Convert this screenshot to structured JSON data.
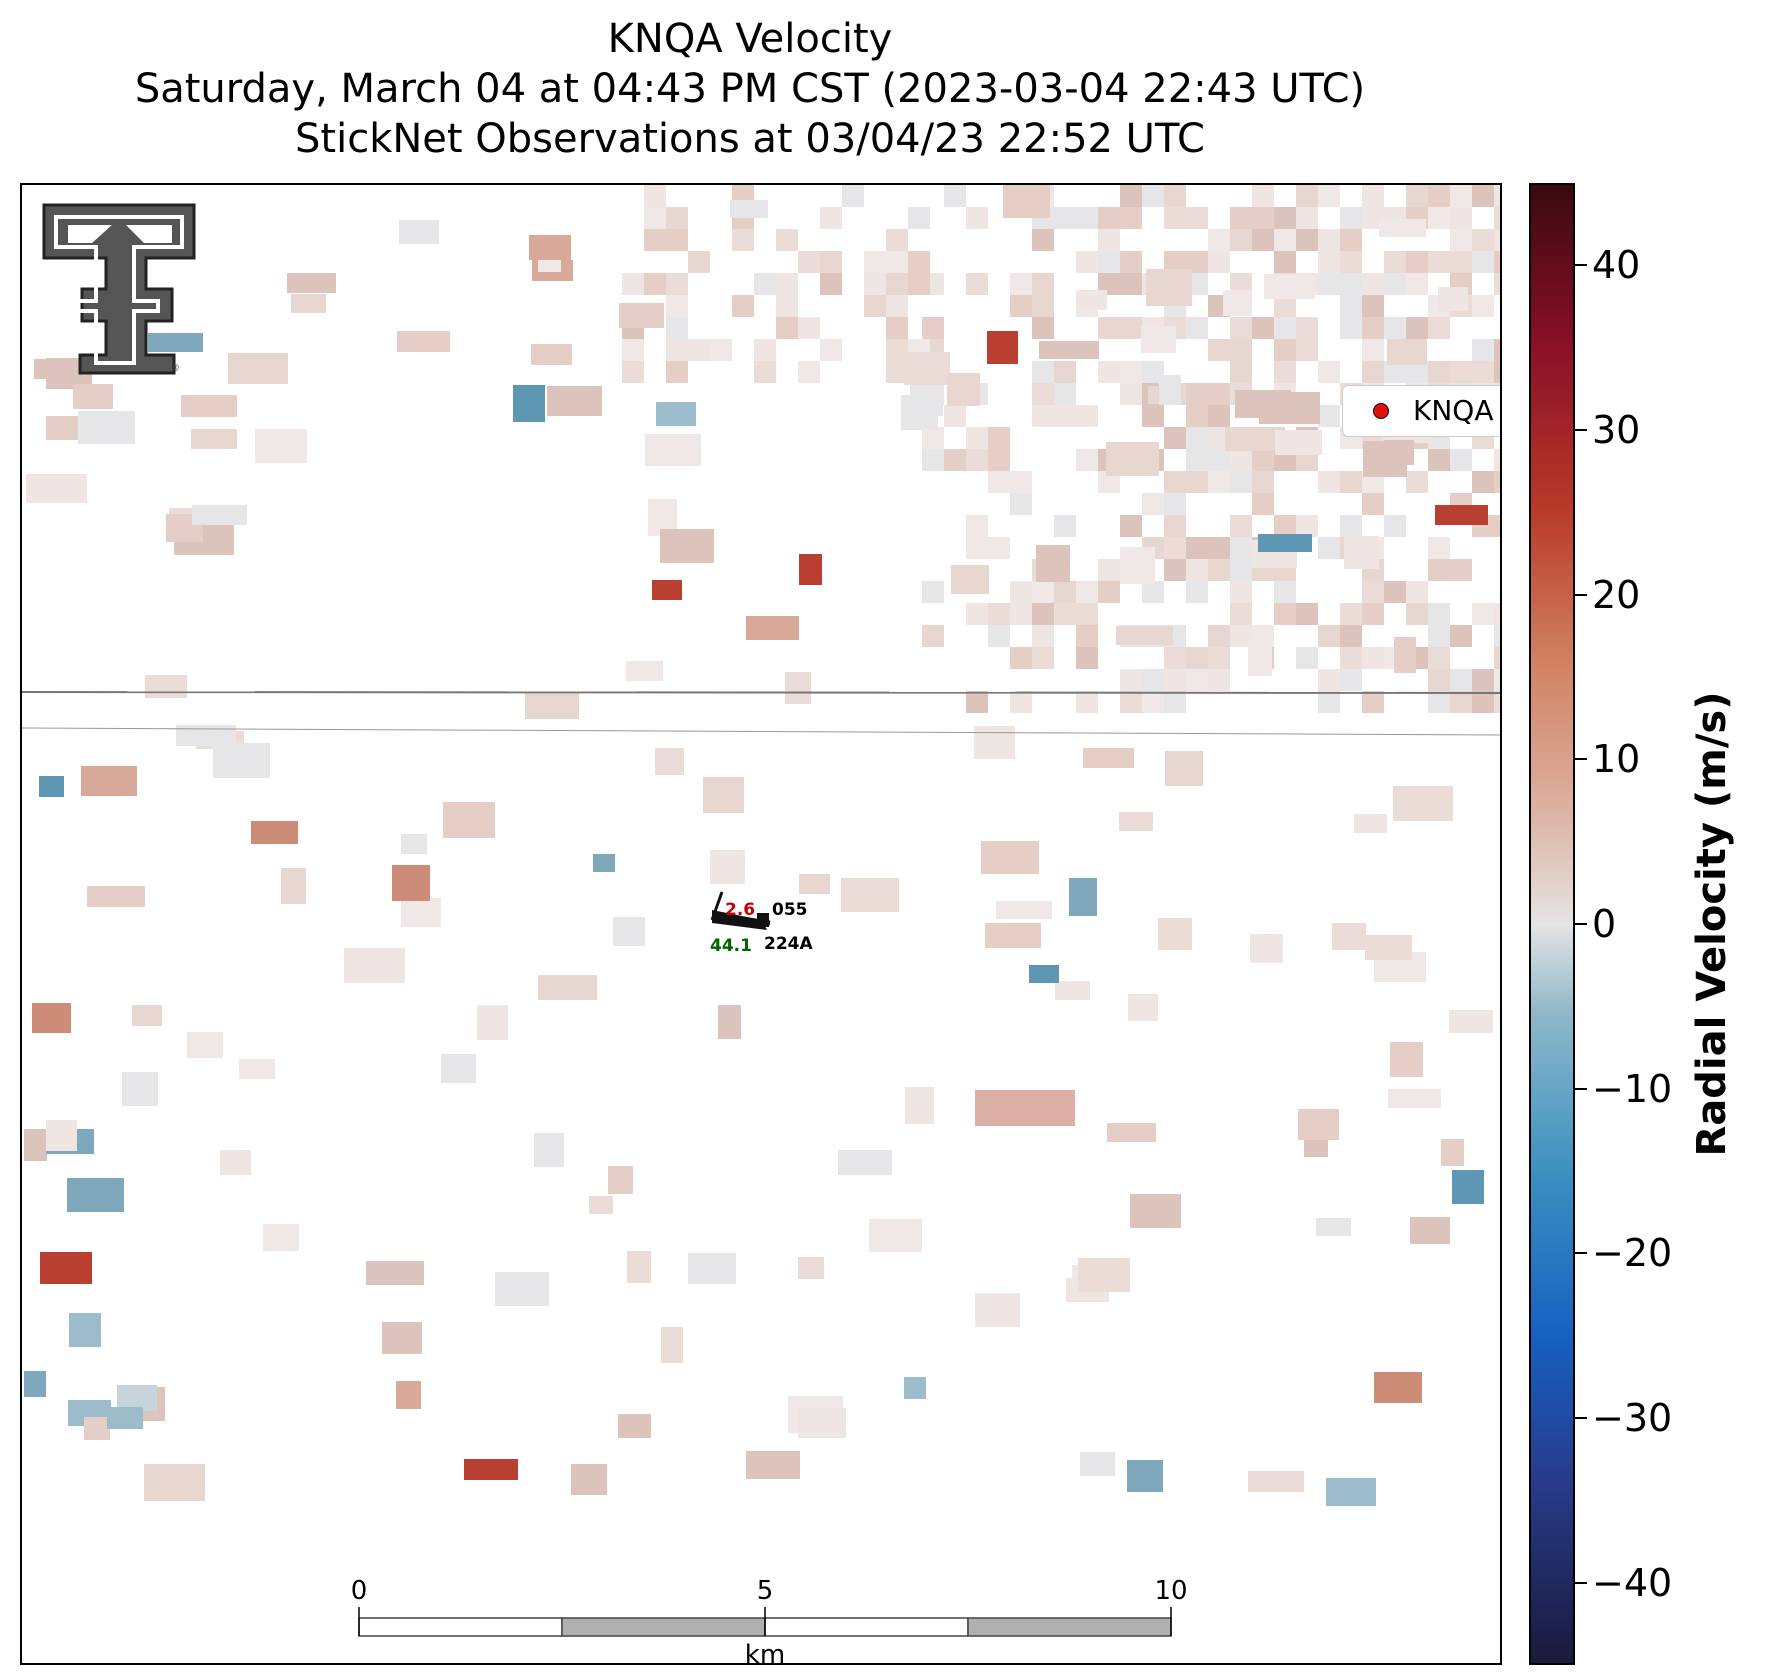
{
  "title": {
    "line1": "KNQA Velocity",
    "line2": "Saturday, March 04 at 04:43 PM CST (2023-03-04 22:43 UTC)",
    "line3": "StickNet Observations at 03/04/23 22:52 UTC"
  },
  "legend": {
    "label": "KNQA",
    "marker_color": "#e01010"
  },
  "colorbar": {
    "label": "Radial Velocity (m/s)",
    "range": [
      -45,
      45
    ],
    "ticks": [
      "40",
      "30",
      "20",
      "10",
      "0",
      "−10",
      "−20",
      "−30",
      "−40"
    ],
    "tick_values": [
      40,
      30,
      20,
      10,
      0,
      -10,
      -20,
      -30,
      -40
    ]
  },
  "scalebar": {
    "labels": [
      "0",
      "5",
      "10"
    ],
    "unit": "km"
  },
  "stations": [
    {
      "id": "055",
      "value": "2.6",
      "value_color": "#c00000"
    },
    {
      "id": "224A",
      "value": "44.1",
      "value_color": "#006400"
    }
  ],
  "logo": {
    "name": "texas-tech-double-t-logo"
  }
}
